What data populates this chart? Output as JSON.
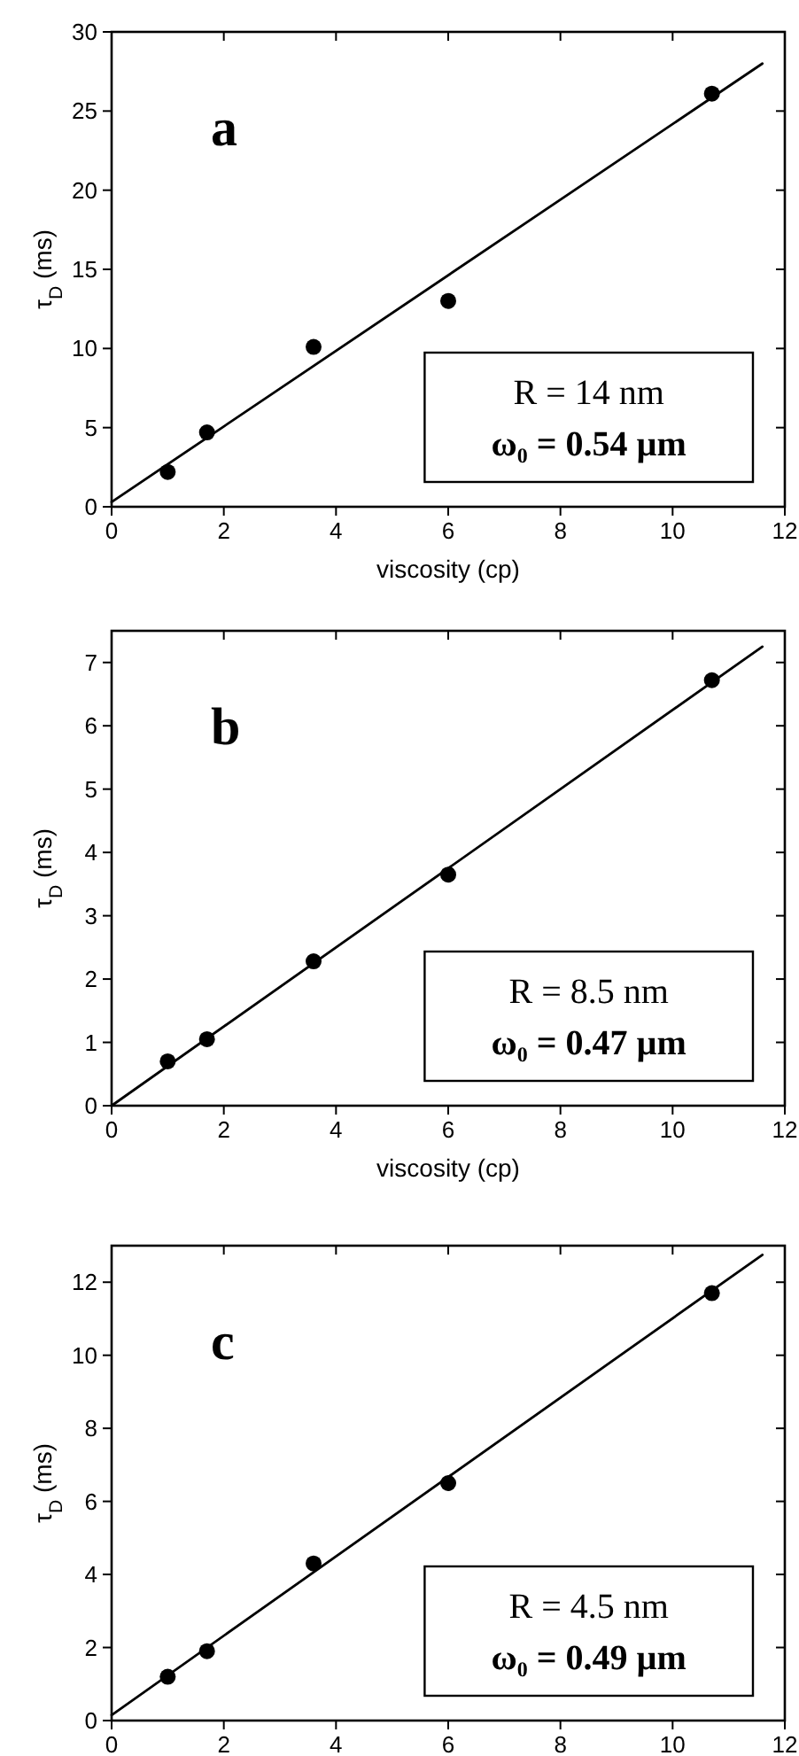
{
  "chart_data": [
    {
      "type": "scatter",
      "xlabel": "viscosity (cp)",
      "ylabel": "τ$_{D}$ (ms)",
      "xlim": [
        0,
        12
      ],
      "xticks": [
        0,
        2,
        4,
        6,
        8,
        10,
        12
      ],
      "ylim": [
        0,
        30
      ],
      "yticks": [
        0,
        5,
        10,
        15,
        20,
        25,
        30
      ],
      "annotations": [
        "a",
        "R = 14 nm",
        "ω₀ = 0.54 µm"
      ],
      "series": [
        {
          "color": "#000000",
          "marker": "circle",
          "x": [
            1,
            1.7,
            3.6,
            6,
            10.7
          ],
          "values": [
            2.2,
            4.7,
            10.1,
            13,
            26.1
          ]
        },
        {
          "type": "line",
          "marker": "none",
          "color": "#000000",
          "x": [
            0,
            11.6
          ],
          "values": [
            0.3,
            28
          ]
        }
      ]
    },
    {
      "type": "scatter",
      "xlabel": "viscosity (cp)",
      "ylabel": "τ$_{D}$ (ms)",
      "xlim": [
        0,
        12
      ],
      "xticks": [
        0,
        2,
        4,
        6,
        8,
        10,
        12
      ],
      "ylim": [
        0,
        7.5
      ],
      "yticks": [
        0,
        1,
        2,
        3,
        4,
        5,
        6,
        7
      ],
      "annotations": [
        "b",
        "R = 8.5 nm",
        "ω₀ = 0.47 µm"
      ],
      "series": [
        {
          "color": "#000000",
          "marker": "circle",
          "x": [
            1,
            1.7,
            3.6,
            6,
            10.7
          ],
          "values": [
            0.7,
            1.05,
            2.28,
            3.65,
            6.72
          ]
        },
        {
          "type": "line",
          "marker": "none",
          "color": "#000000",
          "x": [
            0,
            11.6
          ],
          "values": [
            0,
            7.25
          ]
        }
      ]
    },
    {
      "type": "scatter",
      "ylabel": "τ$_{D}$ (ms)",
      "xlim": [
        0,
        12
      ],
      "xticks": [
        0,
        2,
        4,
        6,
        8,
        10,
        12
      ],
      "ylim": [
        0,
        13
      ],
      "yticks": [
        0,
        2,
        4,
        6,
        8,
        10,
        12
      ],
      "annotations": [
        "c",
        "R = 4.5 nm",
        "ω₀ = 0.49 µm"
      ],
      "series": [
        {
          "color": "#000000",
          "marker": "circle",
          "x": [
            1,
            1.7,
            3.6,
            6,
            10.7
          ],
          "values": [
            1.2,
            1.9,
            4.3,
            6.5,
            11.7
          ]
        },
        {
          "type": "line",
          "marker": "none",
          "color": "#000000",
          "x": [
            0,
            11.6
          ],
          "values": [
            0.15,
            12.75
          ]
        }
      ]
    }
  ]
}
